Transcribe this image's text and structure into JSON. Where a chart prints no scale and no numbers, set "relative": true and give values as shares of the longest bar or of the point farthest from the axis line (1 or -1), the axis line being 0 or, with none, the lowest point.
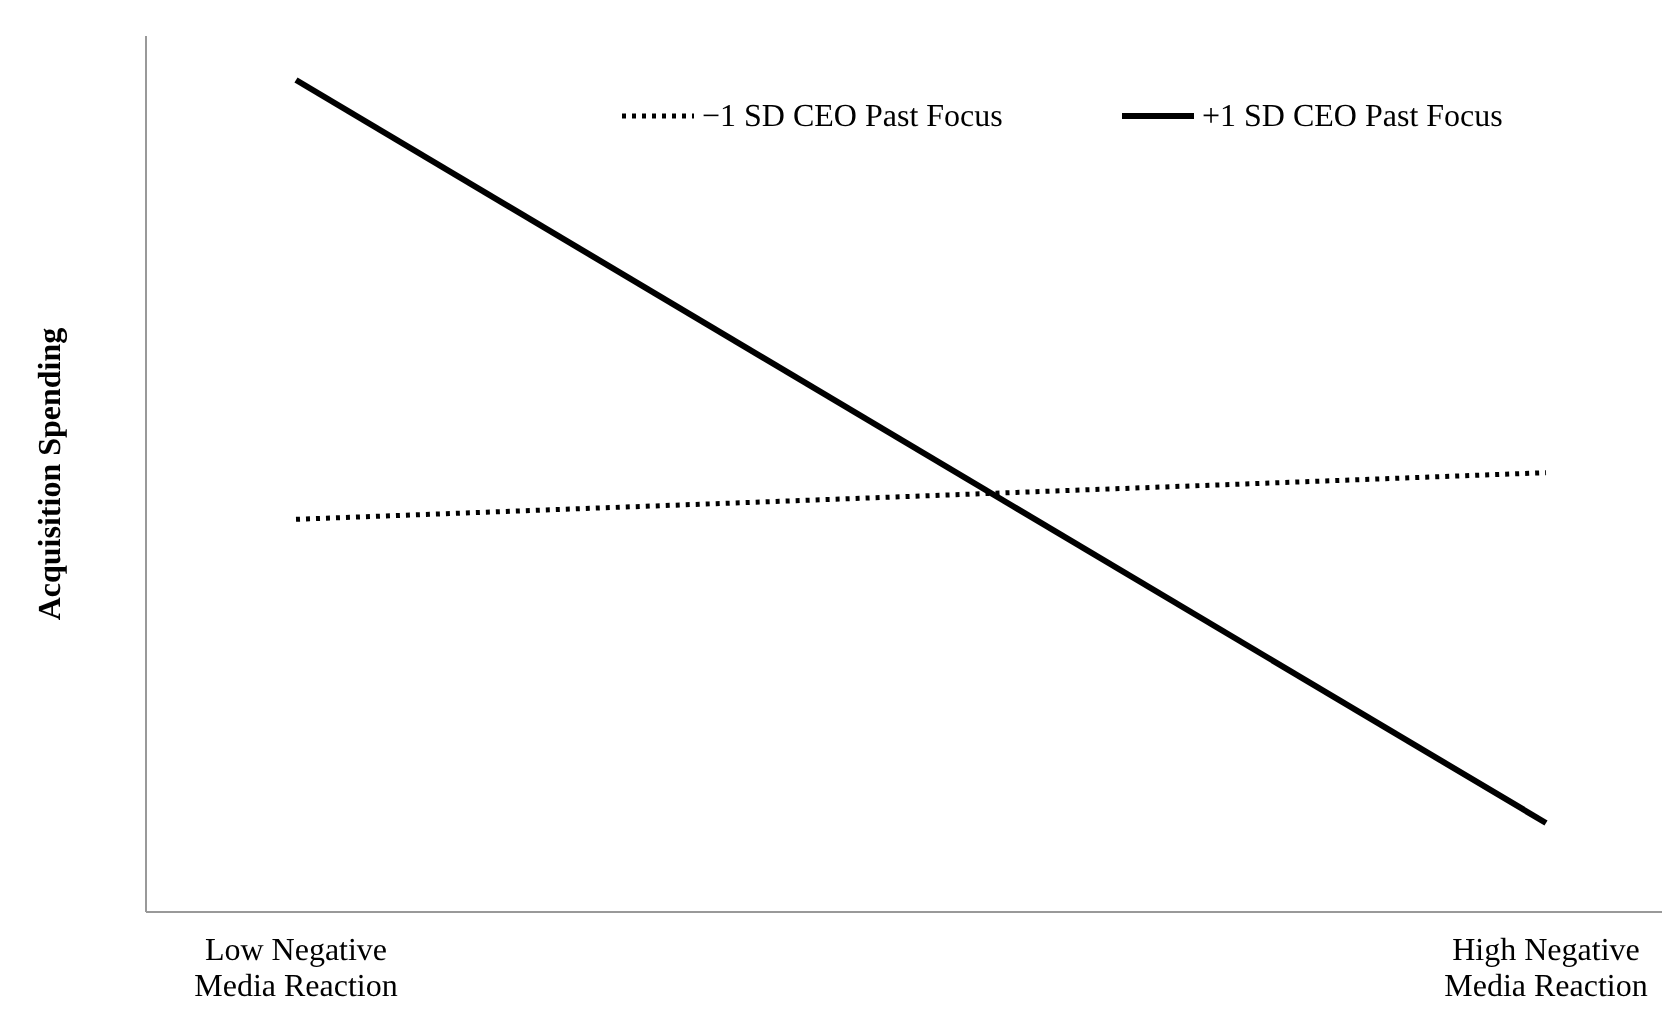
{
  "chart_data": {
    "type": "line",
    "relative": true,
    "ylabel": "Acquisition Spending",
    "categories": [
      "Low Negative\nMedia Reaction",
      "High Negative\nMedia Reaction"
    ],
    "series": [
      {
        "name": "−1 SD CEO Past Focus",
        "color": "#000000",
        "values": [
          0.472,
          0.528
        ],
        "line_style": "dotted"
      },
      {
        "name": "+1 SD CEO Past Focus",
        "color": "#000000",
        "values": [
          1,
          0.107
        ],
        "line_style": "solid"
      }
    ],
    "legend": "top right",
    "marker": "none"
  }
}
